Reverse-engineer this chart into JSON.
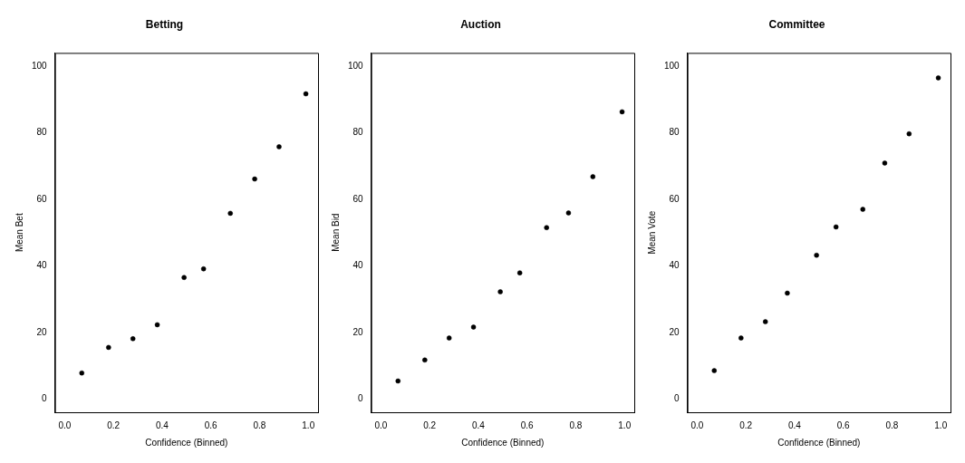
{
  "chart_data": [
    {
      "type": "scatter",
      "title": "Betting",
      "xlabel": "Confidence (Binned)",
      "ylabel": "Mean Bet",
      "color": "#000000",
      "marker": "circle",
      "x": [
        0.07,
        0.18,
        0.28,
        0.38,
        0.49,
        0.57,
        0.68,
        0.78,
        0.88,
        0.99
      ],
      "values": [
        7.8,
        15.5,
        18.1,
        22.3,
        36.5,
        39.1,
        55.8,
        66.1,
        75.8,
        91.7
      ],
      "xlim": [
        -0.04,
        1.04
      ],
      "ylim": [
        -4,
        104
      ],
      "xticks": [
        {
          "value": 0,
          "label": "0.0"
        },
        {
          "value": 0.2,
          "label": "0.2"
        },
        {
          "value": 0.4,
          "label": "0.4"
        },
        {
          "value": 0.6,
          "label": "0.6"
        },
        {
          "value": 0.8,
          "label": "0.8"
        },
        {
          "value": 1,
          "label": "1.0"
        }
      ],
      "yticks": [
        0,
        20,
        40,
        60,
        80,
        100
      ]
    },
    {
      "type": "scatter",
      "title": "Auction",
      "xlabel": "Confidence (Binned)",
      "ylabel": "Mean Bid",
      "color": "#000000",
      "marker": "circle",
      "x": [
        0.07,
        0.18,
        0.28,
        0.38,
        0.49,
        0.57,
        0.68,
        0.77,
        0.87,
        0.99
      ],
      "values": [
        5.4,
        11.7,
        18.3,
        21.6,
        32.2,
        37.9,
        51.5,
        55.9,
        66.8,
        86.3
      ],
      "xlim": [
        -0.04,
        1.04
      ],
      "ylim": [
        -4,
        104
      ],
      "xticks": [
        {
          "value": 0,
          "label": "0.0"
        },
        {
          "value": 0.2,
          "label": "0.2"
        },
        {
          "value": 0.4,
          "label": "0.4"
        },
        {
          "value": 0.6,
          "label": "0.6"
        },
        {
          "value": 0.8,
          "label": "0.8"
        },
        {
          "value": 1,
          "label": "1.0"
        }
      ],
      "yticks": [
        0,
        20,
        40,
        60,
        80,
        100
      ]
    },
    {
      "type": "scatter",
      "title": "Committee",
      "xlabel": "Confidence (Binned)",
      "ylabel": "Mean Vote",
      "color": "#000000",
      "marker": "circle",
      "x": [
        0.07,
        0.18,
        0.28,
        0.37,
        0.49,
        0.57,
        0.68,
        0.77,
        0.87,
        0.99
      ],
      "values": [
        8.5,
        18.3,
        23.2,
        31.8,
        43.2,
        51.7,
        57.0,
        70.9,
        79.7,
        96.5
      ],
      "xlim": [
        -0.04,
        1.04
      ],
      "ylim": [
        -4,
        104
      ],
      "xticks": [
        {
          "value": 0,
          "label": "0.0"
        },
        {
          "value": 0.2,
          "label": "0.2"
        },
        {
          "value": 0.4,
          "label": "0.4"
        },
        {
          "value": 0.6,
          "label": "0.6"
        },
        {
          "value": 0.8,
          "label": "0.8"
        },
        {
          "value": 1,
          "label": "1.0"
        }
      ],
      "yticks": [
        0,
        20,
        40,
        60,
        80,
        100
      ]
    }
  ]
}
